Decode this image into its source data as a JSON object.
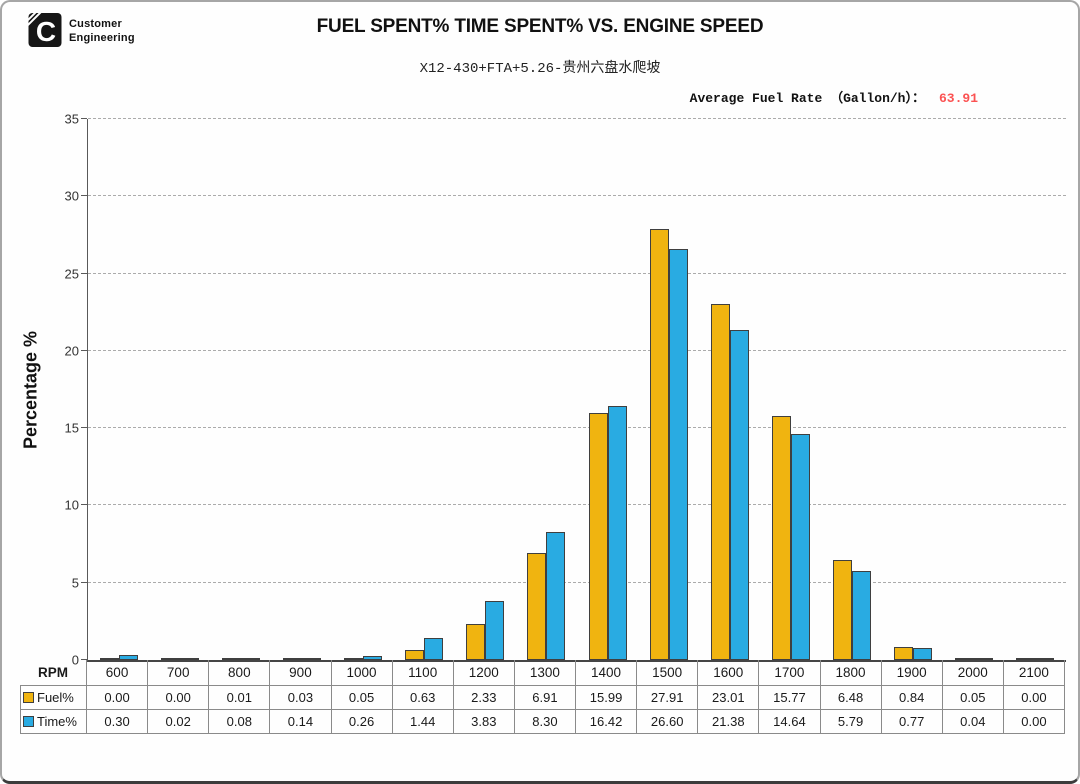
{
  "header": {
    "logo_line1": "Customer",
    "logo_line2": "Engineering",
    "title": "FUEL SPENT% TIME SPENT% VS. ENGINE SPEED",
    "subtitle": "X12-430+FTA+5.26-贵州六盘水爬坡",
    "avg_fuel_rate_label": "Average Fuel Rate （Gallon/h）：",
    "avg_fuel_rate_value": "63.91",
    "avg_fuel_rate_color": "#fb5252"
  },
  "table": {
    "corner_label": "RPM"
  },
  "chart_data": {
    "type": "bar",
    "title": "FUEL SPENT% TIME SPENT% VS. ENGINE SPEED",
    "subtitle": "X12-430+FTA+5.26-贵州六盘水爬坡",
    "xlabel": "RPM",
    "ylabel": "Percentage %",
    "ylim": [
      0,
      35
    ],
    "ytick_step": 5,
    "grid": "horizontal-dashed",
    "legend_position": "data-table-rows",
    "categories": [
      "600",
      "700",
      "800",
      "900",
      "1000",
      "1100",
      "1200",
      "1300",
      "1400",
      "1500",
      "1600",
      "1700",
      "1800",
      "1900",
      "2000",
      "2100"
    ],
    "series": [
      {
        "name": "Fuel%",
        "color": "#f0b410",
        "border_color": "#3f3f3f",
        "values": [
          0.0,
          0.0,
          0.01,
          0.03,
          0.05,
          0.63,
          2.33,
          6.91,
          15.99,
          27.91,
          23.01,
          15.77,
          6.48,
          0.84,
          0.05,
          0.0
        ]
      },
      {
        "name": "Time%",
        "color": "#29abe2",
        "border_color": "#3f3f3f",
        "values": [
          0.3,
          0.02,
          0.08,
          0.14,
          0.26,
          1.44,
          3.83,
          8.3,
          16.42,
          26.6,
          21.38,
          14.64,
          5.79,
          0.77,
          0.04,
          0.0
        ]
      }
    ]
  }
}
